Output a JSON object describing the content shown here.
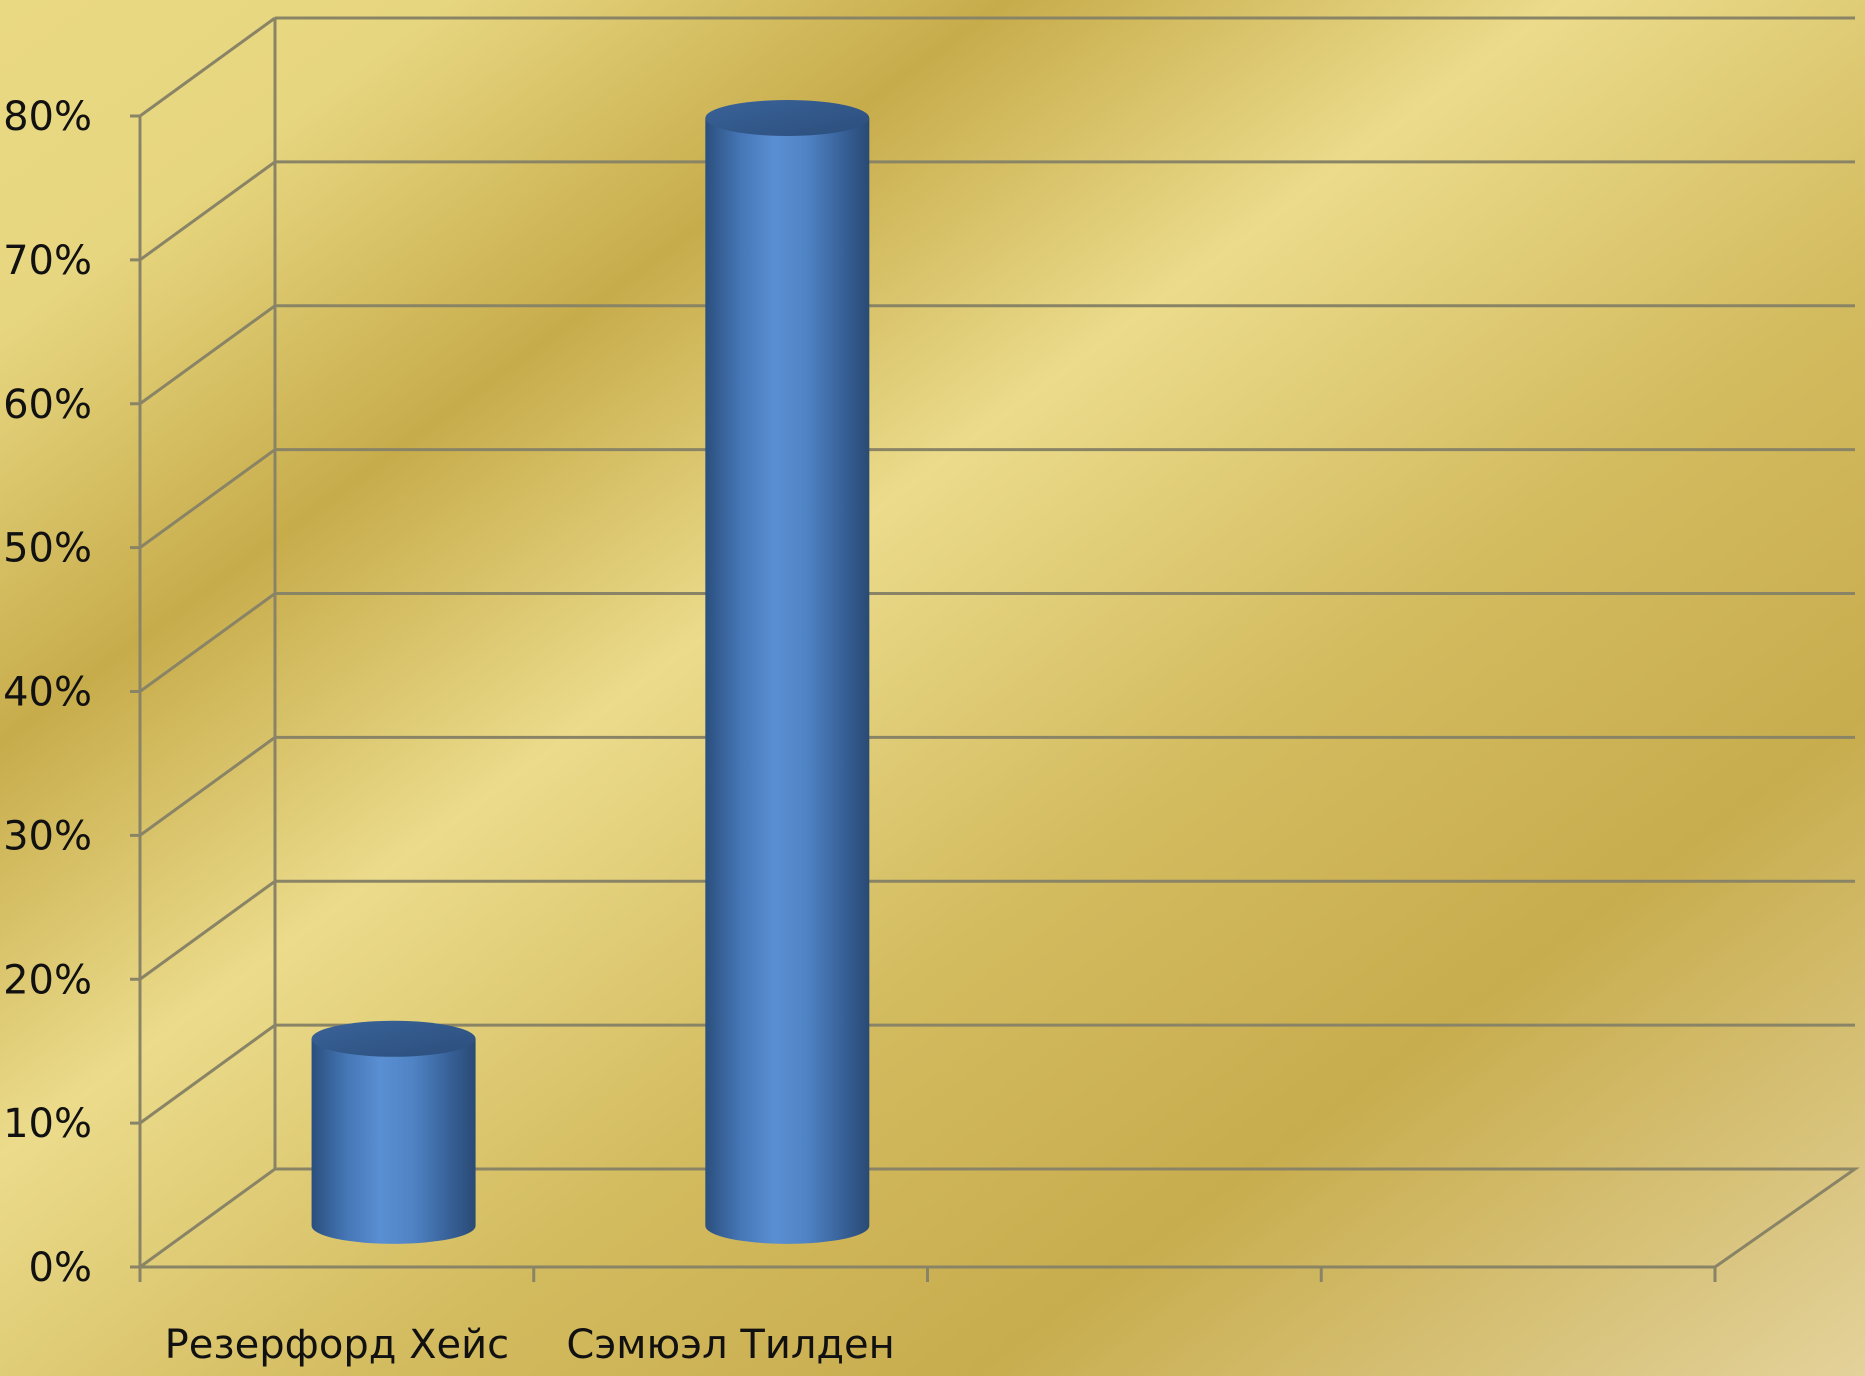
{
  "chart_data": {
    "type": "bar",
    "style": "3d-cylinder",
    "categories": [
      "Резерфорд Хейс",
      "Сэмюэл Тилден",
      "",
      ""
    ],
    "values": [
      13,
      77,
      null,
      null
    ],
    "ylim": [
      0,
      80
    ],
    "y_ticks": [
      "0%",
      "10%",
      "20%",
      "30%",
      "40%",
      "50%",
      "60%",
      "70%",
      "80%"
    ],
    "grid": true,
    "legend": "none",
    "title": "",
    "xlabel": "",
    "ylabel": "",
    "colors": {
      "bar": "#4f81bd",
      "bar_dark": "#2e5484",
      "bar_light": "#5b8fd2",
      "grid": "#8a8466",
      "background_light": "#ead983",
      "background_dark": "#c9ad4e"
    }
  }
}
